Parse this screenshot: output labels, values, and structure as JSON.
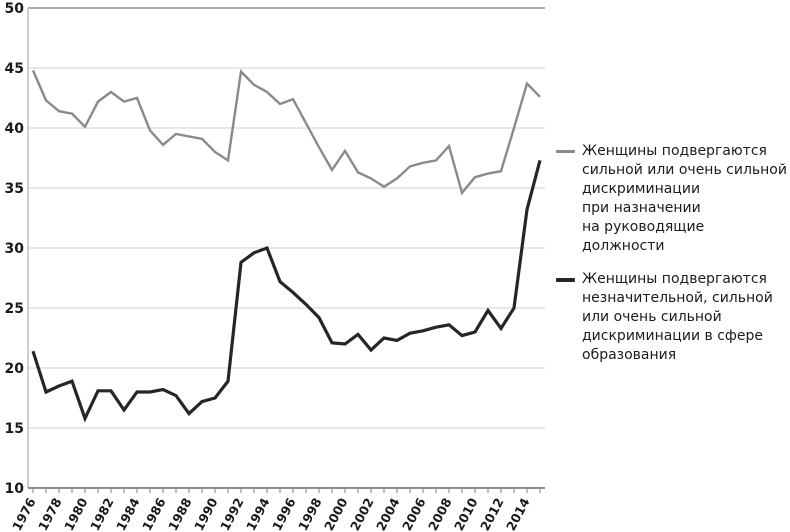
{
  "chart_data": {
    "type": "line",
    "title": "",
    "xlabel": "",
    "ylabel": "",
    "ylim": [
      10,
      50
    ],
    "y_ticks": [
      10,
      15,
      20,
      25,
      30,
      35,
      40,
      45,
      50
    ],
    "grid": "horizontal-light",
    "legend_position": "right",
    "x": [
      1976,
      1977,
      1978,
      1979,
      1980,
      1981,
      1982,
      1983,
      1984,
      1985,
      1986,
      1987,
      1988,
      1989,
      1990,
      1991,
      1992,
      1993,
      1994,
      1995,
      1996,
      1997,
      1998,
      1999,
      2000,
      2001,
      2002,
      2003,
      2004,
      2005,
      2006,
      2007,
      2008,
      2009,
      2010,
      2011,
      2012,
      2013,
      2014,
      2015
    ],
    "x_tick_labels": [
      "1976",
      "1978",
      "1980",
      "1982",
      "1984",
      "1986",
      "1988",
      "1990",
      "1992",
      "1994",
      "1996",
      "1998",
      "2000",
      "2002",
      "2004",
      "2006",
      "2008",
      "2010",
      "2012",
      "2014"
    ],
    "series": [
      {
        "name": "Женщины подвергаются\nсильной или очень сильной\nдискриминации\nпри назначении\nна руководящие должности",
        "color": "#8a8a8a",
        "stroke_width": 2.4,
        "values": [
          44.8,
          42.3,
          41.4,
          41.2,
          40.1,
          42.2,
          43.0,
          42.2,
          42.5,
          39.8,
          38.6,
          39.5,
          39.3,
          39.1,
          38.0,
          37.3,
          44.7,
          43.6,
          43.0,
          42.0,
          42.4,
          40.4,
          38.4,
          36.5,
          38.1,
          36.3,
          35.8,
          35.1,
          35.8,
          36.8,
          37.1,
          37.3,
          38.5,
          34.6,
          35.9,
          36.2,
          36.4,
          40.0,
          43.7,
          42.6
        ]
      },
      {
        "name": "Женщины подвергаются\nнезначительной, сильной\nили очень сильной\nдискриминации в сфере\nобразования",
        "color": "#262626",
        "stroke_width": 3.2,
        "values": [
          21.4,
          18.0,
          18.5,
          18.9,
          15.8,
          18.1,
          18.1,
          16.5,
          18.0,
          18.0,
          18.2,
          17.7,
          16.2,
          17.2,
          17.5,
          18.9,
          28.8,
          29.6,
          30.0,
          27.2,
          26.3,
          25.3,
          24.2,
          22.1,
          22.0,
          22.8,
          21.5,
          22.5,
          22.3,
          22.9,
          23.1,
          23.4,
          23.6,
          22.7,
          23.0,
          24.8,
          23.3,
          25.0,
          33.2,
          37.3
        ]
      }
    ]
  },
  "colors": {
    "background": "#ffffff",
    "grid": "#d9d9d9",
    "frame_top": "#ababab",
    "frame_left": "#bdbdbd",
    "axis_bottom": "#8f8f8f",
    "axis_text": "#1a1a1a"
  }
}
